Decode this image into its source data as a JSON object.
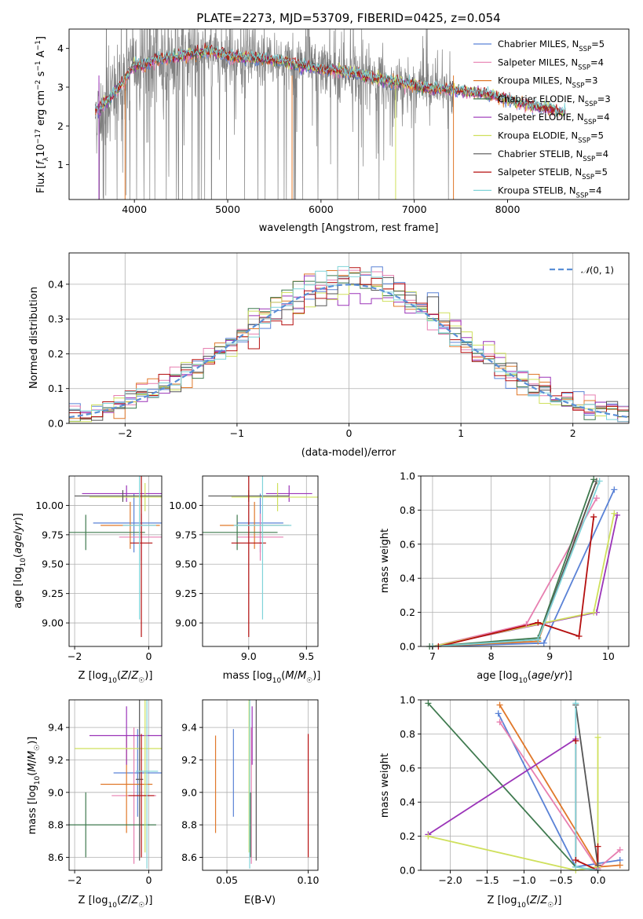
{
  "figure_title": "PLATE=2273, MJD=53709, FIBERID=0425, z=0.054",
  "colors": {
    "Chabrier MILES": "#5a82d6",
    "Salpeter MILES": "#e77fb0",
    "Kroupa MILES": "#e0782a",
    "Chabrier ELODIE": "#3f7a4f",
    "Salpeter ELODIE": "#9b34b8",
    "Kroupa ELODIE": "#cfe05c",
    "Chabrier STELIB": "#555555",
    "Salpeter STELIB": "#b50f0f",
    "Kroupa STELIB": "#7fd3d8",
    "data": "#808080"
  },
  "chart_data": [
    {
      "id": "spectrum",
      "type": "line",
      "title": "PLATE=2273, MJD=53709, FIBERID=0425, z=0.054",
      "xlabel": "wavelength [Angstrom, rest frame]",
      "ylabel": "Flux [f_λ 10^-17 erg cm^-2 s^-1 A^-1]",
      "ylabel_parts": {
        "a": "Flux [",
        "b": "f",
        "c": "λ",
        "d": "10",
        "e": "−17",
        "f": " erg cm",
        "g": "−2",
        "h": " s",
        "i": "−1",
        "j": " A",
        "k": "−1",
        "l": "]"
      },
      "xlim": [
        3300,
        9300
      ],
      "ylim": [
        0.1,
        4.5
      ],
      "xticks": [
        4000,
        5000,
        6000,
        7000,
        8000
      ],
      "yticks": [
        1,
        2,
        3,
        4
      ],
      "continuum": [
        [
          3600,
          2.4
        ],
        [
          3700,
          2.6
        ],
        [
          3800,
          2.9
        ],
        [
          3900,
          3.2
        ],
        [
          4000,
          3.6
        ],
        [
          4100,
          3.55
        ],
        [
          4200,
          3.7
        ],
        [
          4400,
          3.75
        ],
        [
          4600,
          3.85
        ],
        [
          4800,
          3.95
        ],
        [
          5000,
          3.8
        ],
        [
          5200,
          3.75
        ],
        [
          5400,
          3.72
        ],
        [
          5600,
          3.68
        ],
        [
          5800,
          3.55
        ],
        [
          6000,
          3.48
        ],
        [
          6200,
          3.42
        ],
        [
          6400,
          3.33
        ],
        [
          6600,
          3.22
        ],
        [
          6800,
          3.12
        ],
        [
          7000,
          3.05
        ],
        [
          7200,
          2.95
        ],
        [
          7400,
          2.95
        ],
        [
          7500,
          2.9
        ],
        [
          7700,
          2.85
        ],
        [
          7900,
          2.75
        ],
        [
          8100,
          2.6
        ],
        [
          8300,
          2.5
        ],
        [
          8500,
          2.4
        ],
        [
          8600,
          2.35
        ]
      ],
      "data_range": [
        3580,
        7420
      ],
      "model_range": [
        3580,
        8620
      ],
      "series": [
        {
          "name": "Chabrier MILES",
          "nssp": "5"
        },
        {
          "name": "Salpeter MILES",
          "nssp": "4"
        },
        {
          "name": "Kroupa MILES",
          "nssp": "3"
        },
        {
          "name": "Chabrier ELODIE",
          "nssp": "3"
        },
        {
          "name": "Salpeter ELODIE",
          "nssp": "4"
        },
        {
          "name": "Kroupa ELODIE",
          "nssp": "5"
        },
        {
          "name": "Chabrier STELIB",
          "nssp": "4"
        },
        {
          "name": "Salpeter STELIB",
          "nssp": "5"
        },
        {
          "name": "Kroupa STELIB",
          "nssp": "4"
        }
      ],
      "legend_placement": "top-right"
    },
    {
      "id": "residuals",
      "type": "histogram",
      "xlabel": "(data-model)/error",
      "ylabel": "Normed distribution",
      "xlim": [
        -2.5,
        2.5
      ],
      "ylim": [
        0,
        0.49
      ],
      "xticks": [
        -2,
        -1,
        0,
        1,
        2
      ],
      "yticks": [
        0.0,
        0.1,
        0.2,
        0.3,
        0.4
      ],
      "bin_width": 0.1,
      "reference_curve": {
        "label": "N(0, 1)",
        "label_script": "𝒩",
        "label_rest": "(0, 1)",
        "mu": 0,
        "sigma": 1
      },
      "grid": true,
      "legend_placement": "top-right"
    },
    {
      "id": "age-vs-Z",
      "type": "errorbar",
      "xlabel": "Z [log10(Z/Z⊙)]",
      "ylabel": "age [log10(age/yr)]",
      "xlim": [
        -2.15,
        0.35
      ],
      "ylim": [
        8.8,
        10.25
      ],
      "xticks": [
        -2,
        0
      ],
      "yticks": [
        9.0,
        9.25,
        9.5,
        9.75,
        10.0
      ],
      "points": [
        {
          "series": "Chabrier MILES",
          "x": -0.4,
          "xerr": 1.1,
          "y": 9.85,
          "yerr": 0.25
        },
        {
          "series": "Salpeter MILES",
          "x": -0.2,
          "xerr": 0.6,
          "y": 9.73,
          "yerr": 0.2
        },
        {
          "series": "Kroupa MILES",
          "x": -0.5,
          "xerr": 0.8,
          "y": 9.83,
          "yerr": 0.2
        },
        {
          "series": "Chabrier ELODIE",
          "x": -1.7,
          "xerr": 1.6,
          "y": 9.77,
          "yerr": 0.15
        },
        {
          "series": "Salpeter ELODIE",
          "x": -0.6,
          "xerr": 1.2,
          "y": 10.1,
          "yerr": 0.07
        },
        {
          "series": "Kroupa ELODIE",
          "x": -0.1,
          "xerr": 1.5,
          "y": 10.07,
          "yerr": 0.12
        },
        {
          "series": "Chabrier STELIB",
          "x": -0.7,
          "xerr": 1.3,
          "y": 10.08,
          "yerr": 0.05
        },
        {
          "series": "Salpeter STELIB",
          "x": -0.2,
          "xerr": 0.3,
          "y": 9.68,
          "yerr": 0.8
        },
        {
          "series": "Kroupa STELIB",
          "x": -0.25,
          "xerr": 0.45,
          "y": 9.83,
          "yerr": 0.8
        }
      ]
    },
    {
      "id": "age-vs-mass",
      "type": "errorbar",
      "xlabel": "mass [log10(M/M⊙)]",
      "xlim": [
        8.6,
        9.6
      ],
      "ylim": [
        8.8,
        10.25
      ],
      "xticks": [
        9.0,
        9.5
      ],
      "yticks": [
        9.0,
        9.25,
        9.5,
        9.75,
        10.0
      ],
      "points": [
        {
          "series": "Chabrier MILES",
          "x": 9.1,
          "xerr": 0.2,
          "y": 9.85,
          "yerr": 0.25
        },
        {
          "series": "Salpeter MILES",
          "x": 9.1,
          "xerr": 0.2,
          "y": 9.73,
          "yerr": 0.2
        },
        {
          "series": "Kroupa MILES",
          "x": 9.05,
          "xerr": 0.3,
          "y": 9.83,
          "yerr": 0.2
        },
        {
          "series": "Chabrier ELODIE",
          "x": 8.9,
          "xerr": 0.35,
          "y": 9.77,
          "yerr": 0.15
        },
        {
          "series": "Salpeter ELODIE",
          "x": 9.35,
          "xerr": 0.2,
          "y": 10.1,
          "yerr": 0.07
        },
        {
          "series": "Kroupa ELODIE",
          "x": 9.25,
          "xerr": 0.4,
          "y": 10.07,
          "yerr": 0.12
        },
        {
          "series": "Chabrier STELIB",
          "x": 9.0,
          "xerr": 0.35,
          "y": 10.08,
          "yerr": 0.05
        },
        {
          "series": "Salpeter STELIB",
          "x": 9.0,
          "xerr": 0.15,
          "y": 9.68,
          "yerr": 0.8
        },
        {
          "series": "Kroupa STELIB",
          "x": 9.12,
          "xerr": 0.25,
          "y": 9.83,
          "yerr": 0.8
        }
      ]
    },
    {
      "id": "weight-vs-age",
      "type": "line",
      "xlabel": "age [log10(age/yr)]",
      "ylabel": "mass weight",
      "xlim": [
        6.8,
        10.35
      ],
      "ylim": [
        0,
        1.0
      ],
      "xticks": [
        7,
        8,
        9,
        10
      ],
      "yticks": [
        0.0,
        0.2,
        0.4,
        0.6,
        0.8,
        1.0
      ],
      "series": [
        {
          "name": "Chabrier MILES",
          "x": [
            7.0,
            8.9,
            10.1
          ],
          "y": [
            0.0,
            0.02,
            0.92
          ]
        },
        {
          "name": "Salpeter MILES",
          "x": [
            7.0,
            8.6,
            9.8
          ],
          "y": [
            0.0,
            0.13,
            0.87
          ]
        },
        {
          "name": "Kroupa MILES",
          "x": [
            7.0,
            8.8,
            9.8
          ],
          "y": [
            0.0,
            0.03,
            0.97
          ]
        },
        {
          "name": "Chabrier ELODIE",
          "x": [
            6.95,
            8.8,
            9.75
          ],
          "y": [
            0.0,
            0.05,
            0.98
          ]
        },
        {
          "name": "Salpeter ELODIE",
          "x": [
            7.0,
            9.8,
            10.15
          ],
          "y": [
            0.0,
            0.2,
            0.77
          ]
        },
        {
          "name": "Kroupa ELODIE",
          "x": [
            7.0,
            9.75,
            10.1
          ],
          "y": [
            0.0,
            0.2,
            0.78
          ]
        },
        {
          "name": "Chabrier STELIB",
          "x": [
            7.0,
            8.8,
            9.8
          ],
          "y": [
            0.0,
            0.04,
            0.97
          ]
        },
        {
          "name": "Salpeter STELIB",
          "x": [
            7.1,
            8.8,
            9.5,
            9.75
          ],
          "y": [
            0.0,
            0.14,
            0.06,
            0.76
          ]
        },
        {
          "name": "Kroupa STELIB",
          "x": [
            7.0,
            8.8,
            9.85
          ],
          "y": [
            0.0,
            0.04,
            0.97
          ]
        }
      ],
      "grid": true
    },
    {
      "id": "mass-vs-Z",
      "type": "errorbar",
      "xlabel": "Z [log10(Z/Z⊙)]",
      "ylabel": "mass [log10(M/M⊙)]",
      "xlim": [
        -2.15,
        0.35
      ],
      "ylim": [
        8.52,
        9.57
      ],
      "xticks": [
        -2,
        0
      ],
      "yticks": [
        8.6,
        8.8,
        9.0,
        9.2,
        9.4
      ],
      "points": [
        {
          "series": "Chabrier MILES",
          "x": -0.3,
          "xerr": 0.65,
          "y": 9.12,
          "yerr": 0.27
        },
        {
          "series": "Salpeter MILES",
          "x": -0.4,
          "xerr": 0.6,
          "y": 8.98,
          "yerr": 0.42
        },
        {
          "series": "Kroupa MILES",
          "x": -0.6,
          "xerr": 0.7,
          "y": 9.05,
          "yerr": 0.3
        },
        {
          "series": "Chabrier ELODIE",
          "x": -1.7,
          "xerr": 1.9,
          "y": 8.8,
          "yerr": 0.2
        },
        {
          "series": "Salpeter ELODIE",
          "x": -0.6,
          "xerr": 1.0,
          "y": 9.35,
          "yerr": 0.18
        },
        {
          "series": "Kroupa ELODIE",
          "x": -0.1,
          "xerr": 1.9,
          "y": 9.27,
          "yerr": 0.64
        },
        {
          "series": "Chabrier STELIB",
          "x": -0.25,
          "xerr": 0.1,
          "y": 9.08,
          "yerr": 0.5
        },
        {
          "series": "Salpeter STELIB",
          "x": -0.2,
          "xerr": 0.35,
          "y": 8.98,
          "yerr": 0.38
        },
        {
          "series": "Kroupa STELIB",
          "x": -0.05,
          "xerr": 0.3,
          "y": 9.13,
          "yerr": 0.6
        }
      ]
    },
    {
      "id": "mass-vs-EBV",
      "type": "errorbar",
      "xlabel": "E(B-V)",
      "xlim": [
        0.035,
        0.106
      ],
      "ylim": [
        8.52,
        9.57
      ],
      "xticks": [
        0.05,
        0.1
      ],
      "yticks": [
        8.6,
        8.8,
        9.0,
        9.2,
        9.4
      ],
      "points": [
        {
          "series": "Chabrier MILES",
          "x": 0.054,
          "y": 9.12,
          "yerr": 0.27
        },
        {
          "series": "Salpeter MILES",
          "x": 0.065,
          "y": 8.98,
          "yerr": 0.42
        },
        {
          "series": "Kroupa MILES",
          "x": 0.043,
          "y": 9.05,
          "yerr": 0.3
        },
        {
          "series": "Chabrier ELODIE",
          "x": 0.0645,
          "y": 8.8,
          "yerr": 0.2
        },
        {
          "series": "Salpeter ELODIE",
          "x": 0.0655,
          "y": 9.35,
          "yerr": 0.18
        },
        {
          "series": "Kroupa ELODIE",
          "x": 0.0636,
          "y": 9.27,
          "yerr": 0.64
        },
        {
          "series": "Chabrier STELIB",
          "x": 0.068,
          "y": 9.08,
          "yerr": 0.5
        },
        {
          "series": "Salpeter STELIB",
          "x": 0.1,
          "y": 8.98,
          "yerr": 0.38
        },
        {
          "series": "Kroupa STELIB",
          "x": 0.064,
          "y": 9.13,
          "yerr": 0.6
        }
      ]
    },
    {
      "id": "weight-vs-Z",
      "type": "line",
      "xlabel": "Z [log10(Z/Z⊙)]",
      "ylabel": "mass weight",
      "xlim": [
        -2.4,
        0.42
      ],
      "ylim": [
        0,
        1.0
      ],
      "xticks": [
        -2.0,
        -1.5,
        -1.0,
        -0.5,
        0.0
      ],
      "yticks": [
        0.0,
        0.2,
        0.4,
        0.6,
        0.8,
        1.0
      ],
      "series": [
        {
          "name": "Chabrier MILES",
          "x": [
            -1.35,
            -0.3,
            0.3
          ],
          "y": [
            0.92,
            0.02,
            0.06
          ]
        },
        {
          "name": "Salpeter MILES",
          "x": [
            -1.33,
            0.0,
            0.3
          ],
          "y": [
            0.87,
            0.01,
            0.12
          ]
        },
        {
          "name": "Kroupa MILES",
          "x": [
            -1.33,
            0.0,
            0.3
          ],
          "y": [
            0.97,
            0.02,
            0.03
          ]
        },
        {
          "name": "Chabrier ELODIE",
          "x": [
            -2.3,
            -0.3
          ],
          "y": [
            0.98,
            0.02
          ]
        },
        {
          "name": "Salpeter ELODIE",
          "x": [
            -2.3,
            -0.3
          ],
          "y": [
            0.21,
            0.77
          ]
        },
        {
          "name": "Kroupa ELODIE",
          "x": [
            -2.3,
            -0.3,
            0.0,
            0.0
          ],
          "y": [
            0.2,
            0.0,
            0.02,
            0.78
          ]
        },
        {
          "name": "Chabrier STELIB",
          "x": [
            -0.3,
            0.0
          ],
          "y": [
            0.97,
            0.03
          ]
        },
        {
          "name": "Salpeter STELIB",
          "x": [
            -0.3,
            -0.3,
            0.0,
            0.0
          ],
          "y": [
            0.76,
            0.06,
            0.0,
            0.14
          ]
        },
        {
          "name": "Kroupa STELIB",
          "x": [
            -0.3,
            -0.3,
            0.0
          ],
          "y": [
            0.98,
            0.02,
            0.0
          ]
        }
      ],
      "grid": true
    }
  ]
}
